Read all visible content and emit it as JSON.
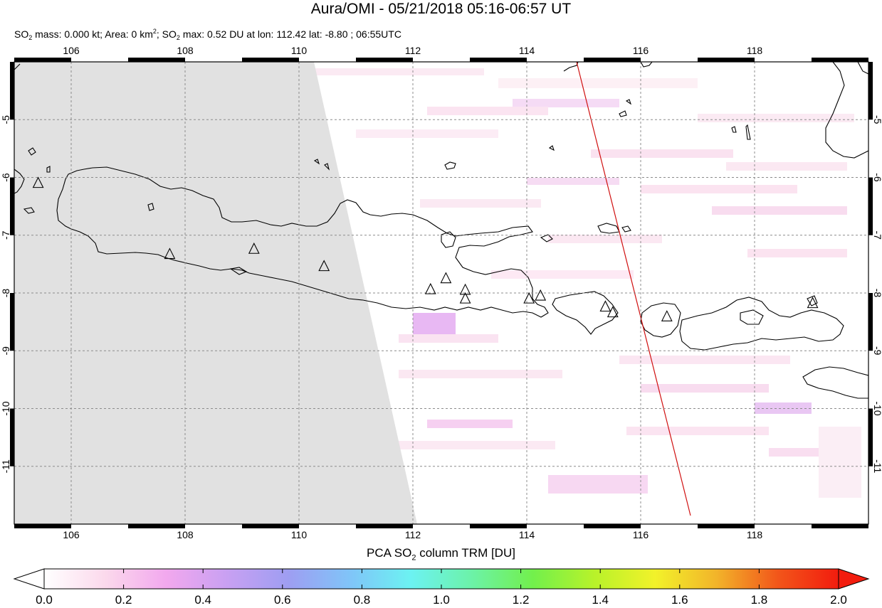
{
  "title": "Aura/OMI - 05/21/2018 05:16-06:57 UT",
  "subtitle": {
    "mass_label": "SO",
    "mass_text": " mass: 0.000 kt; Area: 0 km",
    "area_sup": "2",
    "max_label": "; SO",
    "max_text": " max: 0.52 DU at lon: 112.42 lat: -8.80 ; 06:55UTC",
    "sub2": "2"
  },
  "map": {
    "lon_range": [
      105.0,
      120.0
    ],
    "lat_range": [
      -12.0,
      -4.0
    ],
    "lon_ticks": [
      "106",
      "108",
      "110",
      "112",
      "114",
      "116",
      "118"
    ],
    "lat_ticks": [
      "-5",
      "-6",
      "-7",
      "-8",
      "-9",
      "-10",
      "-11"
    ],
    "grid": "dashed",
    "no_data_color": "#e1e1e1",
    "coast_color": "#000000",
    "track_color": "#d01010",
    "volcanoes": [
      {
        "lon": 105.42,
        "lat": -6.1
      },
      {
        "lon": 107.73,
        "lat": -7.33
      },
      {
        "lon": 109.21,
        "lat": -7.24
      },
      {
        "lon": 110.44,
        "lat": -7.54
      },
      {
        "lon": 112.31,
        "lat": -7.94
      },
      {
        "lon": 112.58,
        "lat": -7.75
      },
      {
        "lon": 112.92,
        "lat": -7.95
      },
      {
        "lon": 112.92,
        "lat": -8.1
      },
      {
        "lon": 114.04,
        "lat": -8.1
      },
      {
        "lon": 114.24,
        "lat": -8.05
      },
      {
        "lon": 115.38,
        "lat": -8.24
      },
      {
        "lon": 115.51,
        "lat": -8.34
      },
      {
        "lon": 116.46,
        "lat": -8.41
      },
      {
        "lon": 119.02,
        "lat": -8.18
      }
    ]
  },
  "colorbar": {
    "title_pre": "PCA SO",
    "title_sub": "2",
    "title_post": " column TRM [DU]",
    "labels": [
      "0.0",
      "0.2",
      "0.4",
      "0.6",
      "0.8",
      "1.0",
      "1.2",
      "1.4",
      "1.6",
      "1.8",
      "2.0"
    ],
    "stops": [
      "#ffffff",
      "#fbd9ec",
      "#f2a8ee",
      "#c8a0f2",
      "#9e9ef2",
      "#80c4f8",
      "#6cf2f2",
      "#6cf2a8",
      "#72f04c",
      "#b8f22a",
      "#f2f22a",
      "#f2b42a",
      "#f2561a",
      "#f21c0e"
    ]
  }
}
